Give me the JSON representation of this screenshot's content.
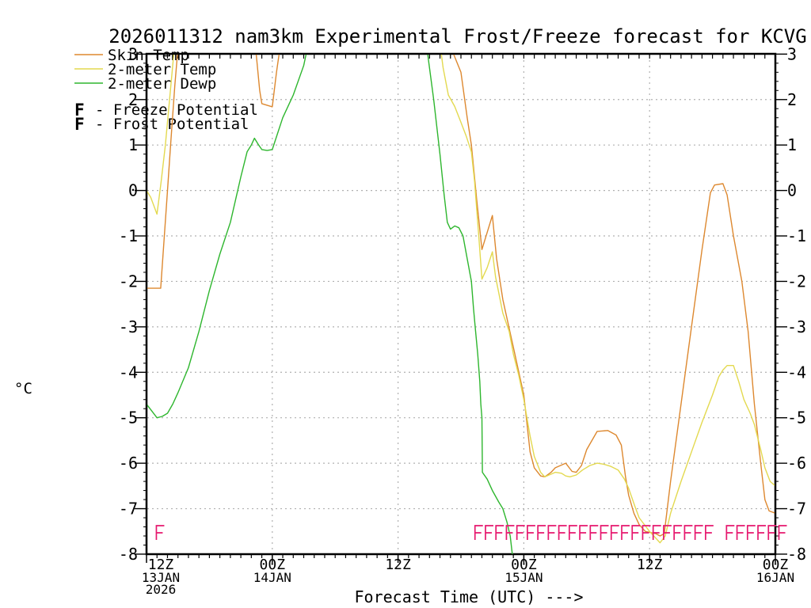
{
  "window": {
    "background": "#ffffff"
  },
  "chart_data": {
    "type": "line",
    "title": "2026011312 nam3km Experimental Frost/Freeze forecast for KCVG",
    "xlabel": "Forecast Time (UTC) --->",
    "ylabel": "°C",
    "xlim_hours": [
      0,
      60
    ],
    "ylim": [
      -8,
      3
    ],
    "x_start": "12Z 13JAN 2026",
    "x_end": "00Z 16JAN",
    "grid": {
      "h_values": [
        2,
        1,
        0,
        -1,
        -2,
        -3,
        -4,
        -5,
        -6,
        -7
      ],
      "v_hours": [
        12,
        24,
        36,
        48
      ],
      "color": "#b0b0b0"
    },
    "axis_color": "#000000",
    "y_ticks": [
      {
        "value": 3,
        "label": "3"
      },
      {
        "value": 2,
        "label": "2"
      },
      {
        "value": 1,
        "label": "1"
      },
      {
        "value": 0,
        "label": "0"
      },
      {
        "value": -1,
        "label": "-1"
      },
      {
        "value": -2,
        "label": "-2"
      },
      {
        "value": -3,
        "label": "-3"
      },
      {
        "value": -4,
        "label": "-4"
      },
      {
        "value": -5,
        "label": "-5"
      },
      {
        "value": -6,
        "label": "-6"
      },
      {
        "value": -7,
        "label": "-7"
      },
      {
        "value": -8,
        "label": "-8"
      }
    ],
    "x_ticks": [
      {
        "hour": 0,
        "lines": [
          "12Z",
          "13JAN",
          "2026"
        ]
      },
      {
        "hour": 12,
        "lines": [
          "00Z",
          "14JAN"
        ]
      },
      {
        "hour": 24,
        "lines": [
          "12Z"
        ]
      },
      {
        "hour": 36,
        "lines": [
          "00Z",
          "15JAN"
        ]
      },
      {
        "hour": 48,
        "lines": [
          "12Z"
        ]
      },
      {
        "hour": 60,
        "lines": [
          "00Z",
          "16JAN"
        ]
      }
    ],
    "series": [
      {
        "name": "Skin Temp",
        "color": "#dd882f",
        "points": [
          [
            0,
            -2.15
          ],
          [
            1,
            -2.15
          ],
          [
            1.35,
            -2.15
          ],
          [
            1.7,
            -1.0
          ],
          [
            2,
            0.0
          ],
          [
            2.3,
            1.0
          ],
          [
            2.7,
            2.3
          ],
          [
            3.1,
            3.4
          ],
          [
            10.3,
            3.4
          ],
          [
            10.8,
            2.2
          ],
          [
            11,
            1.91
          ],
          [
            12,
            1.84
          ],
          [
            12.4,
            2.6
          ],
          [
            12.9,
            3.4
          ],
          [
            28.9,
            3.4
          ],
          [
            29.3,
            3.0
          ],
          [
            30,
            2.6
          ],
          [
            30.6,
            1.6
          ],
          [
            31,
            1.0
          ],
          [
            31.5,
            -0.2
          ],
          [
            32,
            -1.3
          ],
          [
            33,
            -0.55
          ],
          [
            33.4,
            -1.5
          ],
          [
            34,
            -2.4
          ],
          [
            35,
            -3.45
          ],
          [
            36,
            -4.5
          ],
          [
            36.6,
            -5.75
          ],
          [
            37,
            -6.1
          ],
          [
            37.6,
            -6.28
          ],
          [
            38,
            -6.3
          ],
          [
            38.6,
            -6.2
          ],
          [
            39,
            -6.1
          ],
          [
            40,
            -6.0
          ],
          [
            40.6,
            -6.18
          ],
          [
            41,
            -6.2
          ],
          [
            41.5,
            -6.05
          ],
          [
            42,
            -5.7
          ],
          [
            43,
            -5.3
          ],
          [
            44,
            -5.28
          ],
          [
            44.8,
            -5.38
          ],
          [
            45.3,
            -5.6
          ],
          [
            45.7,
            -6.3
          ],
          [
            46,
            -6.7
          ],
          [
            46.5,
            -7.1
          ],
          [
            47,
            -7.35
          ],
          [
            47.6,
            -7.5
          ],
          [
            48.6,
            -7.55
          ],
          [
            49,
            -7.6
          ],
          [
            49.4,
            -7.55
          ],
          [
            50,
            -6.4
          ],
          [
            51,
            -4.7
          ],
          [
            52,
            -3.0
          ],
          [
            53,
            -1.3
          ],
          [
            53.8,
            -0.05
          ],
          [
            54.2,
            0.12
          ],
          [
            55,
            0.15
          ],
          [
            55.4,
            -0.1
          ],
          [
            56,
            -1.0
          ],
          [
            56.8,
            -2.0
          ],
          [
            57.4,
            -3.1
          ],
          [
            58,
            -4.7
          ],
          [
            58.6,
            -6.0
          ],
          [
            59,
            -6.8
          ],
          [
            59.4,
            -7.05
          ],
          [
            60,
            -7.1
          ]
        ]
      },
      {
        "name": "2-meter Temp",
        "color": "#e3d94f",
        "points": [
          [
            0,
            0.0
          ],
          [
            0.4,
            -0.15
          ],
          [
            1,
            -0.52
          ],
          [
            1.4,
            0.2
          ],
          [
            1.8,
            1.0
          ],
          [
            2.2,
            2.0
          ],
          [
            2.6,
            3.0
          ],
          [
            2.8,
            3.4
          ],
          [
            27.9,
            3.4
          ],
          [
            28.3,
            2.7
          ],
          [
            28.8,
            2.1
          ],
          [
            29.4,
            1.85
          ],
          [
            30,
            1.5
          ],
          [
            30.5,
            1.2
          ],
          [
            31,
            0.85
          ],
          [
            31.3,
            0.2
          ],
          [
            31.7,
            -1.0
          ],
          [
            32,
            -1.95
          ],
          [
            32.5,
            -1.7
          ],
          [
            33,
            -1.35
          ],
          [
            33.3,
            -1.9
          ],
          [
            34,
            -2.7
          ],
          [
            34.6,
            -3.1
          ],
          [
            35,
            -3.6
          ],
          [
            35.5,
            -4.05
          ],
          [
            36,
            -4.6
          ],
          [
            36.6,
            -5.4
          ],
          [
            37,
            -5.85
          ],
          [
            37.6,
            -6.2
          ],
          [
            38,
            -6.3
          ],
          [
            38.5,
            -6.25
          ],
          [
            39,
            -6.2
          ],
          [
            39.6,
            -6.22
          ],
          [
            40,
            -6.28
          ],
          [
            40.4,
            -6.3
          ],
          [
            41,
            -6.26
          ],
          [
            41.6,
            -6.15
          ],
          [
            42.3,
            -6.05
          ],
          [
            43,
            -6.0
          ],
          [
            43.6,
            -6.02
          ],
          [
            44.3,
            -6.07
          ],
          [
            45,
            -6.15
          ],
          [
            45.6,
            -6.35
          ],
          [
            46,
            -6.55
          ],
          [
            46.6,
            -6.95
          ],
          [
            47,
            -7.2
          ],
          [
            48,
            -7.5
          ],
          [
            48.6,
            -7.65
          ],
          [
            49,
            -7.75
          ],
          [
            49.5,
            -7.6
          ],
          [
            50,
            -7.1
          ],
          [
            51,
            -6.4
          ],
          [
            52,
            -5.75
          ],
          [
            53,
            -5.1
          ],
          [
            54,
            -4.5
          ],
          [
            54.6,
            -4.1
          ],
          [
            55,
            -3.95
          ],
          [
            55.4,
            -3.85
          ],
          [
            56,
            -3.85
          ],
          [
            56.5,
            -4.2
          ],
          [
            57,
            -4.6
          ],
          [
            57.6,
            -4.9
          ],
          [
            58,
            -5.15
          ],
          [
            58.6,
            -5.7
          ],
          [
            59,
            -6.1
          ],
          [
            59.5,
            -6.4
          ],
          [
            60,
            -6.5
          ]
        ]
      },
      {
        "name": "2-meter Dewp",
        "color": "#2eb62e",
        "points": [
          [
            0,
            -4.7
          ],
          [
            0.5,
            -4.85
          ],
          [
            1,
            -5.0
          ],
          [
            1.5,
            -4.97
          ],
          [
            2,
            -4.9
          ],
          [
            2.5,
            -4.7
          ],
          [
            3,
            -4.45
          ],
          [
            4,
            -3.9
          ],
          [
            5,
            -3.1
          ],
          [
            6,
            -2.2
          ],
          [
            7,
            -1.4
          ],
          [
            8,
            -0.7
          ],
          [
            9,
            0.3
          ],
          [
            9.6,
            0.85
          ],
          [
            10,
            1.0
          ],
          [
            10.3,
            1.15
          ],
          [
            10.7,
            1.0
          ],
          [
            11,
            0.9
          ],
          [
            11.5,
            0.88
          ],
          [
            12,
            0.9
          ],
          [
            13,
            1.6
          ],
          [
            14,
            2.1
          ],
          [
            15,
            2.75
          ],
          [
            15.6,
            3.4
          ],
          [
            26.6,
            3.4
          ],
          [
            27,
            2.7
          ],
          [
            27.4,
            2.0
          ],
          [
            28,
            0.8
          ],
          [
            28.4,
            -0.1
          ],
          [
            28.7,
            -0.7
          ],
          [
            29,
            -0.85
          ],
          [
            29.4,
            -0.78
          ],
          [
            29.8,
            -0.82
          ],
          [
            30.2,
            -1.0
          ],
          [
            30.6,
            -1.5
          ],
          [
            31,
            -2.0
          ],
          [
            31.2,
            -2.6
          ],
          [
            31.4,
            -3.1
          ],
          [
            31.6,
            -3.6
          ],
          [
            31.8,
            -4.2
          ],
          [
            31.9,
            -4.7
          ],
          [
            32,
            -5.0
          ],
          [
            32.05,
            -6.2
          ],
          [
            32.5,
            -6.35
          ],
          [
            33,
            -6.6
          ],
          [
            33.6,
            -6.85
          ],
          [
            34,
            -7.0
          ],
          [
            34.4,
            -7.3
          ],
          [
            34.7,
            -7.6
          ],
          [
            35.1,
            -8.4
          ]
        ]
      }
    ],
    "freeze_potential": {
      "symbol": "F",
      "color": "#e6186e",
      "label": "- Freeze Potential",
      "hours": [
        0.6,
        31,
        32,
        33,
        34,
        35,
        36,
        37,
        38,
        39,
        40,
        41,
        42,
        43,
        44,
        45,
        46,
        47,
        48,
        49,
        50,
        51,
        52,
        53,
        55,
        56,
        57,
        58,
        59,
        60
      ]
    },
    "frost_potential": {
      "symbol": "F",
      "color": "#3353e6",
      "label": "- Frost Potential",
      "hours": []
    }
  }
}
